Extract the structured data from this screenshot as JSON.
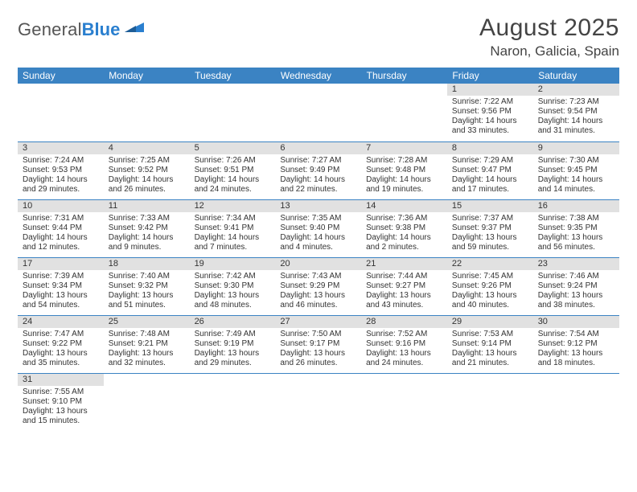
{
  "brand": {
    "general": "General",
    "blue": "Blue"
  },
  "title": "August 2025",
  "location": "Naron, Galicia, Spain",
  "colors": {
    "header_bg": "#3b83c3",
    "header_text": "#ffffff",
    "daynum_bg": "#e1e1e1",
    "border": "#3b83c3",
    "text": "#333333",
    "logo_blue": "#2a7fcf"
  },
  "weekdays": [
    "Sunday",
    "Monday",
    "Tuesday",
    "Wednesday",
    "Thursday",
    "Friday",
    "Saturday"
  ],
  "weeks": [
    [
      null,
      null,
      null,
      null,
      null,
      {
        "n": "1",
        "sunrise": "7:22 AM",
        "sunset": "9:56 PM",
        "daylight": "14 hours and 33 minutes."
      },
      {
        "n": "2",
        "sunrise": "7:23 AM",
        "sunset": "9:54 PM",
        "daylight": "14 hours and 31 minutes."
      }
    ],
    [
      {
        "n": "3",
        "sunrise": "7:24 AM",
        "sunset": "9:53 PM",
        "daylight": "14 hours and 29 minutes."
      },
      {
        "n": "4",
        "sunrise": "7:25 AM",
        "sunset": "9:52 PM",
        "daylight": "14 hours and 26 minutes."
      },
      {
        "n": "5",
        "sunrise": "7:26 AM",
        "sunset": "9:51 PM",
        "daylight": "14 hours and 24 minutes."
      },
      {
        "n": "6",
        "sunrise": "7:27 AM",
        "sunset": "9:49 PM",
        "daylight": "14 hours and 22 minutes."
      },
      {
        "n": "7",
        "sunrise": "7:28 AM",
        "sunset": "9:48 PM",
        "daylight": "14 hours and 19 minutes."
      },
      {
        "n": "8",
        "sunrise": "7:29 AM",
        "sunset": "9:47 PM",
        "daylight": "14 hours and 17 minutes."
      },
      {
        "n": "9",
        "sunrise": "7:30 AM",
        "sunset": "9:45 PM",
        "daylight": "14 hours and 14 minutes."
      }
    ],
    [
      {
        "n": "10",
        "sunrise": "7:31 AM",
        "sunset": "9:44 PM",
        "daylight": "14 hours and 12 minutes."
      },
      {
        "n": "11",
        "sunrise": "7:33 AM",
        "sunset": "9:42 PM",
        "daylight": "14 hours and 9 minutes."
      },
      {
        "n": "12",
        "sunrise": "7:34 AM",
        "sunset": "9:41 PM",
        "daylight": "14 hours and 7 minutes."
      },
      {
        "n": "13",
        "sunrise": "7:35 AM",
        "sunset": "9:40 PM",
        "daylight": "14 hours and 4 minutes."
      },
      {
        "n": "14",
        "sunrise": "7:36 AM",
        "sunset": "9:38 PM",
        "daylight": "14 hours and 2 minutes."
      },
      {
        "n": "15",
        "sunrise": "7:37 AM",
        "sunset": "9:37 PM",
        "daylight": "13 hours and 59 minutes."
      },
      {
        "n": "16",
        "sunrise": "7:38 AM",
        "sunset": "9:35 PM",
        "daylight": "13 hours and 56 minutes."
      }
    ],
    [
      {
        "n": "17",
        "sunrise": "7:39 AM",
        "sunset": "9:34 PM",
        "daylight": "13 hours and 54 minutes."
      },
      {
        "n": "18",
        "sunrise": "7:40 AM",
        "sunset": "9:32 PM",
        "daylight": "13 hours and 51 minutes."
      },
      {
        "n": "19",
        "sunrise": "7:42 AM",
        "sunset": "9:30 PM",
        "daylight": "13 hours and 48 minutes."
      },
      {
        "n": "20",
        "sunrise": "7:43 AM",
        "sunset": "9:29 PM",
        "daylight": "13 hours and 46 minutes."
      },
      {
        "n": "21",
        "sunrise": "7:44 AM",
        "sunset": "9:27 PM",
        "daylight": "13 hours and 43 minutes."
      },
      {
        "n": "22",
        "sunrise": "7:45 AM",
        "sunset": "9:26 PM",
        "daylight": "13 hours and 40 minutes."
      },
      {
        "n": "23",
        "sunrise": "7:46 AM",
        "sunset": "9:24 PM",
        "daylight": "13 hours and 38 minutes."
      }
    ],
    [
      {
        "n": "24",
        "sunrise": "7:47 AM",
        "sunset": "9:22 PM",
        "daylight": "13 hours and 35 minutes."
      },
      {
        "n": "25",
        "sunrise": "7:48 AM",
        "sunset": "9:21 PM",
        "daylight": "13 hours and 32 minutes."
      },
      {
        "n": "26",
        "sunrise": "7:49 AM",
        "sunset": "9:19 PM",
        "daylight": "13 hours and 29 minutes."
      },
      {
        "n": "27",
        "sunrise": "7:50 AM",
        "sunset": "9:17 PM",
        "daylight": "13 hours and 26 minutes."
      },
      {
        "n": "28",
        "sunrise": "7:52 AM",
        "sunset": "9:16 PM",
        "daylight": "13 hours and 24 minutes."
      },
      {
        "n": "29",
        "sunrise": "7:53 AM",
        "sunset": "9:14 PM",
        "daylight": "13 hours and 21 minutes."
      },
      {
        "n": "30",
        "sunrise": "7:54 AM",
        "sunset": "9:12 PM",
        "daylight": "13 hours and 18 minutes."
      }
    ],
    [
      {
        "n": "31",
        "sunrise": "7:55 AM",
        "sunset": "9:10 PM",
        "daylight": "13 hours and 15 minutes."
      },
      null,
      null,
      null,
      null,
      null,
      null
    ]
  ],
  "labels": {
    "sunrise": "Sunrise: ",
    "sunset": "Sunset: ",
    "daylight": "Daylight: "
  }
}
